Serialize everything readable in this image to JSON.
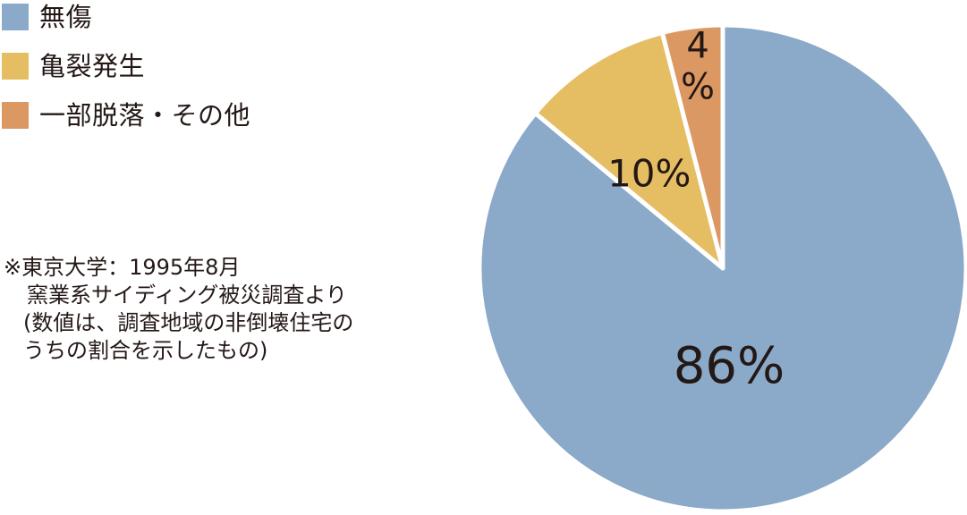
{
  "legend": {
    "items": [
      {
        "label": "無傷",
        "color": "#8ba9c8"
      },
      {
        "label": "亀裂発生",
        "color": "#e5be64"
      },
      {
        "label": "一部脱落・その他",
        "color": "#dc9862"
      }
    ]
  },
  "note": {
    "lines": [
      "※東京大学：1995年8月",
      "窯業系サイディング被災調査より",
      "(数値は、調査地域の非倒壊住宅の",
      "うちの割合を示したもの)"
    ]
  },
  "chart_data": {
    "type": "pie",
    "start_angle_deg": 0,
    "direction": "clockwise",
    "slices": [
      {
        "name": "無傷",
        "value": 86,
        "label": "86%",
        "color": "#8ba9c8"
      },
      {
        "name": "亀裂発生",
        "value": 10,
        "label": "10%",
        "color": "#e5be64"
      },
      {
        "name": "一部脱落・その他",
        "value": 4,
        "label_lines": [
          "4",
          "%"
        ],
        "color": "#dc9862"
      }
    ]
  }
}
